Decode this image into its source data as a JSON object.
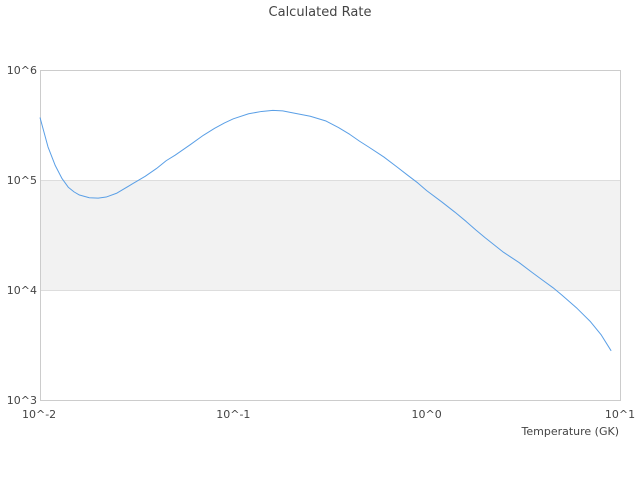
{
  "chart_data": {
    "type": "line",
    "title": "Calculated Rate",
    "xlabel": "Temperature (GK)",
    "ylabel": "",
    "x_scale": "log",
    "y_scale": "log",
    "xlim": [
      0.01,
      10
    ],
    "ylim": [
      1000,
      1000000
    ],
    "x_ticks": [
      {
        "value": 0.01,
        "label": "10^-2"
      },
      {
        "value": 0.1,
        "label": "10^-1"
      },
      {
        "value": 1,
        "label": "10^0"
      },
      {
        "value": 10,
        "label": "10^1"
      }
    ],
    "y_ticks": [
      {
        "value": 1000,
        "label": "10^3"
      },
      {
        "value": 10000,
        "label": "10^4"
      },
      {
        "value": 100000,
        "label": "10^5"
      },
      {
        "value": 1000000,
        "label": "10^6"
      }
    ],
    "y_bands": [
      [
        10000,
        100000
      ]
    ],
    "grid": "horizontal",
    "legend": "none",
    "colors": {
      "series": "#5a9fe6",
      "band": "#f2f2f2",
      "grid": "#dddddd",
      "frame": "#cccccc"
    },
    "series": [
      {
        "name": "",
        "x": [
          0.01,
          0.011,
          0.012,
          0.013,
          0.014,
          0.015,
          0.016,
          0.018,
          0.02,
          0.022,
          0.025,
          0.03,
          0.035,
          0.04,
          0.045,
          0.05,
          0.06,
          0.07,
          0.08,
          0.09,
          0.1,
          0.12,
          0.14,
          0.16,
          0.18,
          0.2,
          0.25,
          0.3,
          0.35,
          0.4,
          0.45,
          0.5,
          0.6,
          0.7,
          0.8,
          0.9,
          1.0,
          1.2,
          1.4,
          1.6,
          1.8,
          2.0,
          2.5,
          3.0,
          3.5,
          4.0,
          4.5,
          5.0,
          6.0,
          7.0,
          8.0,
          9.0
        ],
        "y": [
          370000,
          200000,
          135000,
          103000,
          86000,
          78000,
          73000,
          69000,
          68500,
          70000,
          76000,
          92000,
          108000,
          127000,
          150000,
          168000,
          210000,
          255000,
          295000,
          330000,
          360000,
          400000,
          420000,
          430000,
          425000,
          410000,
          380000,
          345000,
          300000,
          260000,
          225000,
          200000,
          162000,
          132000,
          110000,
          94000,
          80000,
          63000,
          51000,
          42000,
          35000,
          30000,
          22000,
          17800,
          14500,
          12200,
          10500,
          9000,
          6800,
          5200,
          3900,
          2800
        ]
      }
    ]
  }
}
